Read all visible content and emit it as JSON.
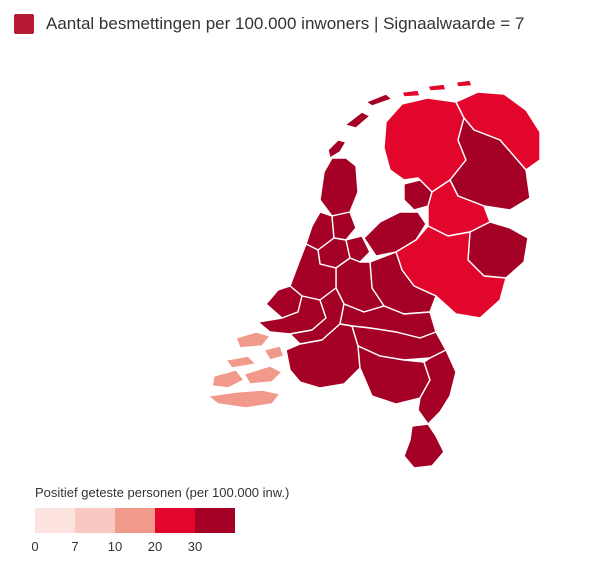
{
  "header": {
    "title": "Aantal besmettingen per 100.000 inwoners | Signaalwaarde = 7",
    "swatch_color": "#b61a33"
  },
  "scale": {
    "title": "Positief geteste personen (per 100.000 inw.)",
    "bins": [
      {
        "color": "#fde3df"
      },
      {
        "color": "#f8c9c1"
      },
      {
        "color": "#f1998a"
      },
      {
        "color": "#e3062c"
      },
      {
        "color": "#a50026"
      }
    ],
    "ticks": [
      "0",
      "7",
      "10",
      "20",
      "30"
    ]
  },
  "colors": {
    "high": "#a50026",
    "mid_high": "#e3062c",
    "medium": "#f1998a",
    "border": "#ffffff"
  },
  "regions": [
    {
      "name": "Noord-Holland-Noord",
      "bin": "30+"
    },
    {
      "name": "Kennemerland",
      "bin": "30+"
    },
    {
      "name": "Amsterdam-Amstelland",
      "bin": "30+"
    },
    {
      "name": "Zaanstreek-Waterland",
      "bin": "30+"
    },
    {
      "name": "Gooi en Vechtstreek",
      "bin": "30+"
    },
    {
      "name": "Flevoland",
      "bin": "30+"
    },
    {
      "name": "Fryslân",
      "bin": "20-30"
    },
    {
      "name": "Groningen",
      "bin": "20-30"
    },
    {
      "name": "Drenthe",
      "bin": "30+"
    },
    {
      "name": "IJsselland",
      "bin": "20-30"
    },
    {
      "name": "Twente",
      "bin": "30+"
    },
    {
      "name": "Noord- en Oost-Gelderland",
      "bin": "20-30"
    },
    {
      "name": "Gelderland-Midden",
      "bin": "30+"
    },
    {
      "name": "Gelderland-Zuid",
      "bin": "30+"
    },
    {
      "name": "Utrecht",
      "bin": "30+"
    },
    {
      "name": "Hollands Midden",
      "bin": "30+"
    },
    {
      "name": "Haaglanden",
      "bin": "30+"
    },
    {
      "name": "Rotterdam-Rijnmond",
      "bin": "30+"
    },
    {
      "name": "Zuid-Holland-Zuid",
      "bin": "30+"
    },
    {
      "name": "Zeeland",
      "bin": "10-20"
    },
    {
      "name": "Midden- en West-Brabant",
      "bin": "30+"
    },
    {
      "name": "Brabant-Noord",
      "bin": "30+"
    },
    {
      "name": "Brabant-Zuidoost",
      "bin": "30+"
    },
    {
      "name": "Limburg-Noord",
      "bin": "30+"
    },
    {
      "name": "Zuid-Limburg",
      "bin": "30+"
    }
  ]
}
